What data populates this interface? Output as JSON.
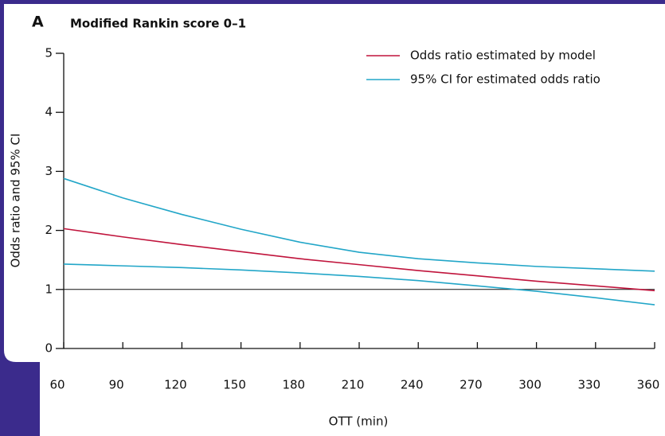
{
  "chart_data": {
    "type": "line",
    "panel_label": "A",
    "title": "Modified Rankin score 0–1",
    "x_label": "OTT (min)",
    "y_label": "Odds ratio and 95% CI",
    "x": [
      60,
      90,
      120,
      150,
      180,
      210,
      240,
      270,
      300,
      330,
      360
    ],
    "series": [
      {
        "name": "Odds ratio estimated by model",
        "color": "#c0143c",
        "values": [
          2.03,
          1.89,
          1.76,
          1.64,
          1.52,
          1.42,
          1.32,
          1.23,
          1.14,
          1.06,
          0.98
        ]
      },
      {
        "name": "95% CI for estimated odds ratio",
        "color": "#22a6c8",
        "upper": [
          2.88,
          2.55,
          2.27,
          2.02,
          1.8,
          1.63,
          1.52,
          1.45,
          1.39,
          1.35,
          1.31
        ],
        "lower": [
          1.43,
          1.4,
          1.37,
          1.33,
          1.28,
          1.22,
          1.15,
          1.06,
          0.97,
          0.86,
          0.74
        ]
      }
    ],
    "reference_line": 1,
    "xlim": [
      60,
      360
    ],
    "xticks": [
      60,
      90,
      120,
      150,
      180,
      210,
      240,
      270,
      300,
      330,
      360
    ],
    "ylim": [
      0,
      5
    ],
    "yticks": [
      0,
      1,
      2,
      3,
      4,
      5
    ],
    "legend": "upper right"
  }
}
